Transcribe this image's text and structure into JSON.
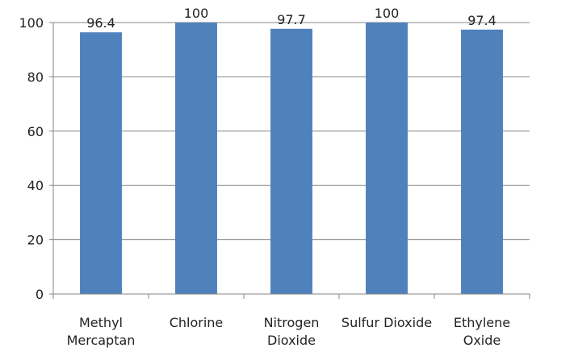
{
  "chart_data": {
    "type": "bar",
    "title": "",
    "xlabel": "",
    "ylabel": "",
    "categories": [
      [
        "Methyl",
        "Mercaptan"
      ],
      [
        "Chlorine"
      ],
      [
        "Nitrogen",
        "Dioxide"
      ],
      [
        "Sulfur Dioxide"
      ],
      [
        "Ethylene",
        "Oxide"
      ]
    ],
    "values": [
      96.4,
      100,
      97.7,
      100,
      97.4
    ],
    "data_labels": [
      "96.4",
      "100",
      "97.7",
      "100",
      "97.4"
    ],
    "ylim": [
      0,
      100
    ],
    "yticks": [
      0,
      20,
      40,
      60,
      80,
      100
    ],
    "ytick_labels": [
      "0",
      "20",
      "40",
      "60",
      "80",
      "100"
    ],
    "grid": true,
    "legend": "none",
    "colors": {
      "bar": "#4F81BD",
      "grid": "#868686",
      "axis": "#868686"
    }
  }
}
